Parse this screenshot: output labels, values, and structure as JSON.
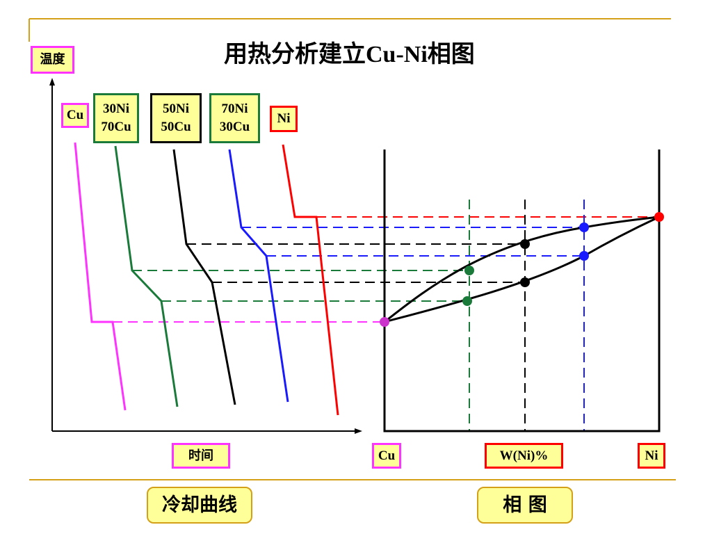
{
  "title": {
    "cn": "用热分析建立",
    "latin": "Cu-Ni",
    "cn2": "相图"
  },
  "labels": {
    "temperature": "温度",
    "time": "时间",
    "cu_curve": "Cu",
    "ni30_line1": "30Ni",
    "ni30_line2": "70Cu",
    "ni50_line1": "50Ni",
    "ni50_line2": "50Cu",
    "ni70_line1": "70Ni",
    "ni70_line2": "30Cu",
    "ni_curve": "Ni",
    "axis_cu": "Cu",
    "axis_wni": "W(Ni)%",
    "axis_ni": "Ni"
  },
  "captions": {
    "cooling_curves": "冷却曲线",
    "phase_diagram": "相 图"
  },
  "colors": {
    "rule": "#d4a017",
    "cu": "#ff33ff",
    "ni30": "#1a7a3a",
    "ni50": "#000000",
    "ni70": "#1a1aff",
    "ni": "#ff0000",
    "label_fill": "#ffff99"
  }
}
